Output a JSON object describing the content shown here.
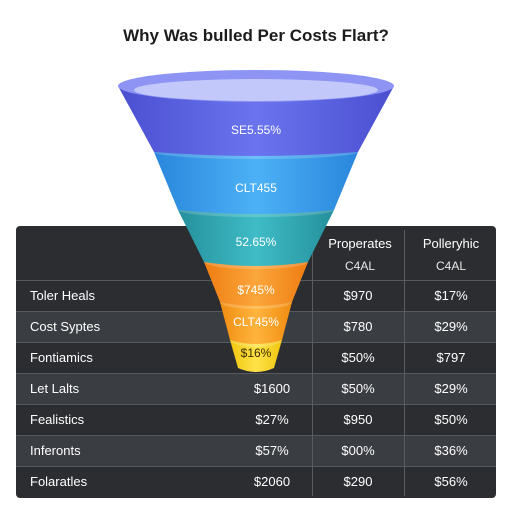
{
  "chart_data": {
    "type": "table",
    "title": "Why Was bulled Per Costs Flart?",
    "funnel_stages": [
      {
        "label": "SE5.55%",
        "color": "#5b63e0"
      },
      {
        "label": "CLT455",
        "color": "#3aa0ee"
      },
      {
        "label": "52.65%",
        "color": "#33a7b4"
      },
      {
        "label": "$745%",
        "color": "#f4921e"
      },
      {
        "label": "CLT45%",
        "color": "#f7a11f"
      },
      {
        "label": "$16%",
        "color": "#f6d21a"
      }
    ],
    "columns": [
      {
        "header": "Properates",
        "subheader": "C4AL"
      },
      {
        "header": "Polleryhic",
        "subheader": "C4AL"
      }
    ],
    "rows": [
      {
        "label": "Toler Heals",
        "center": "",
        "values": [
          "$970",
          "$17%"
        ]
      },
      {
        "label": "Cost Syptes",
        "center": "",
        "values": [
          "$780",
          "$29%"
        ]
      },
      {
        "label": "Fontiamics",
        "center": "",
        "values": [
          "$50%",
          "$797"
        ]
      },
      {
        "label": "Let Lalts",
        "center": "$1600",
        "values": [
          "$50%",
          "$29%"
        ]
      },
      {
        "label": "Fealistics",
        "center": "$27%",
        "values": [
          "$950",
          "$50%"
        ]
      },
      {
        "label": "Inferonts",
        "center": "$57%",
        "values": [
          "$00%",
          "$36%"
        ]
      },
      {
        "label": "Folaratles",
        "center": "$2060",
        "values": [
          "$290",
          "$56%"
        ]
      }
    ]
  }
}
